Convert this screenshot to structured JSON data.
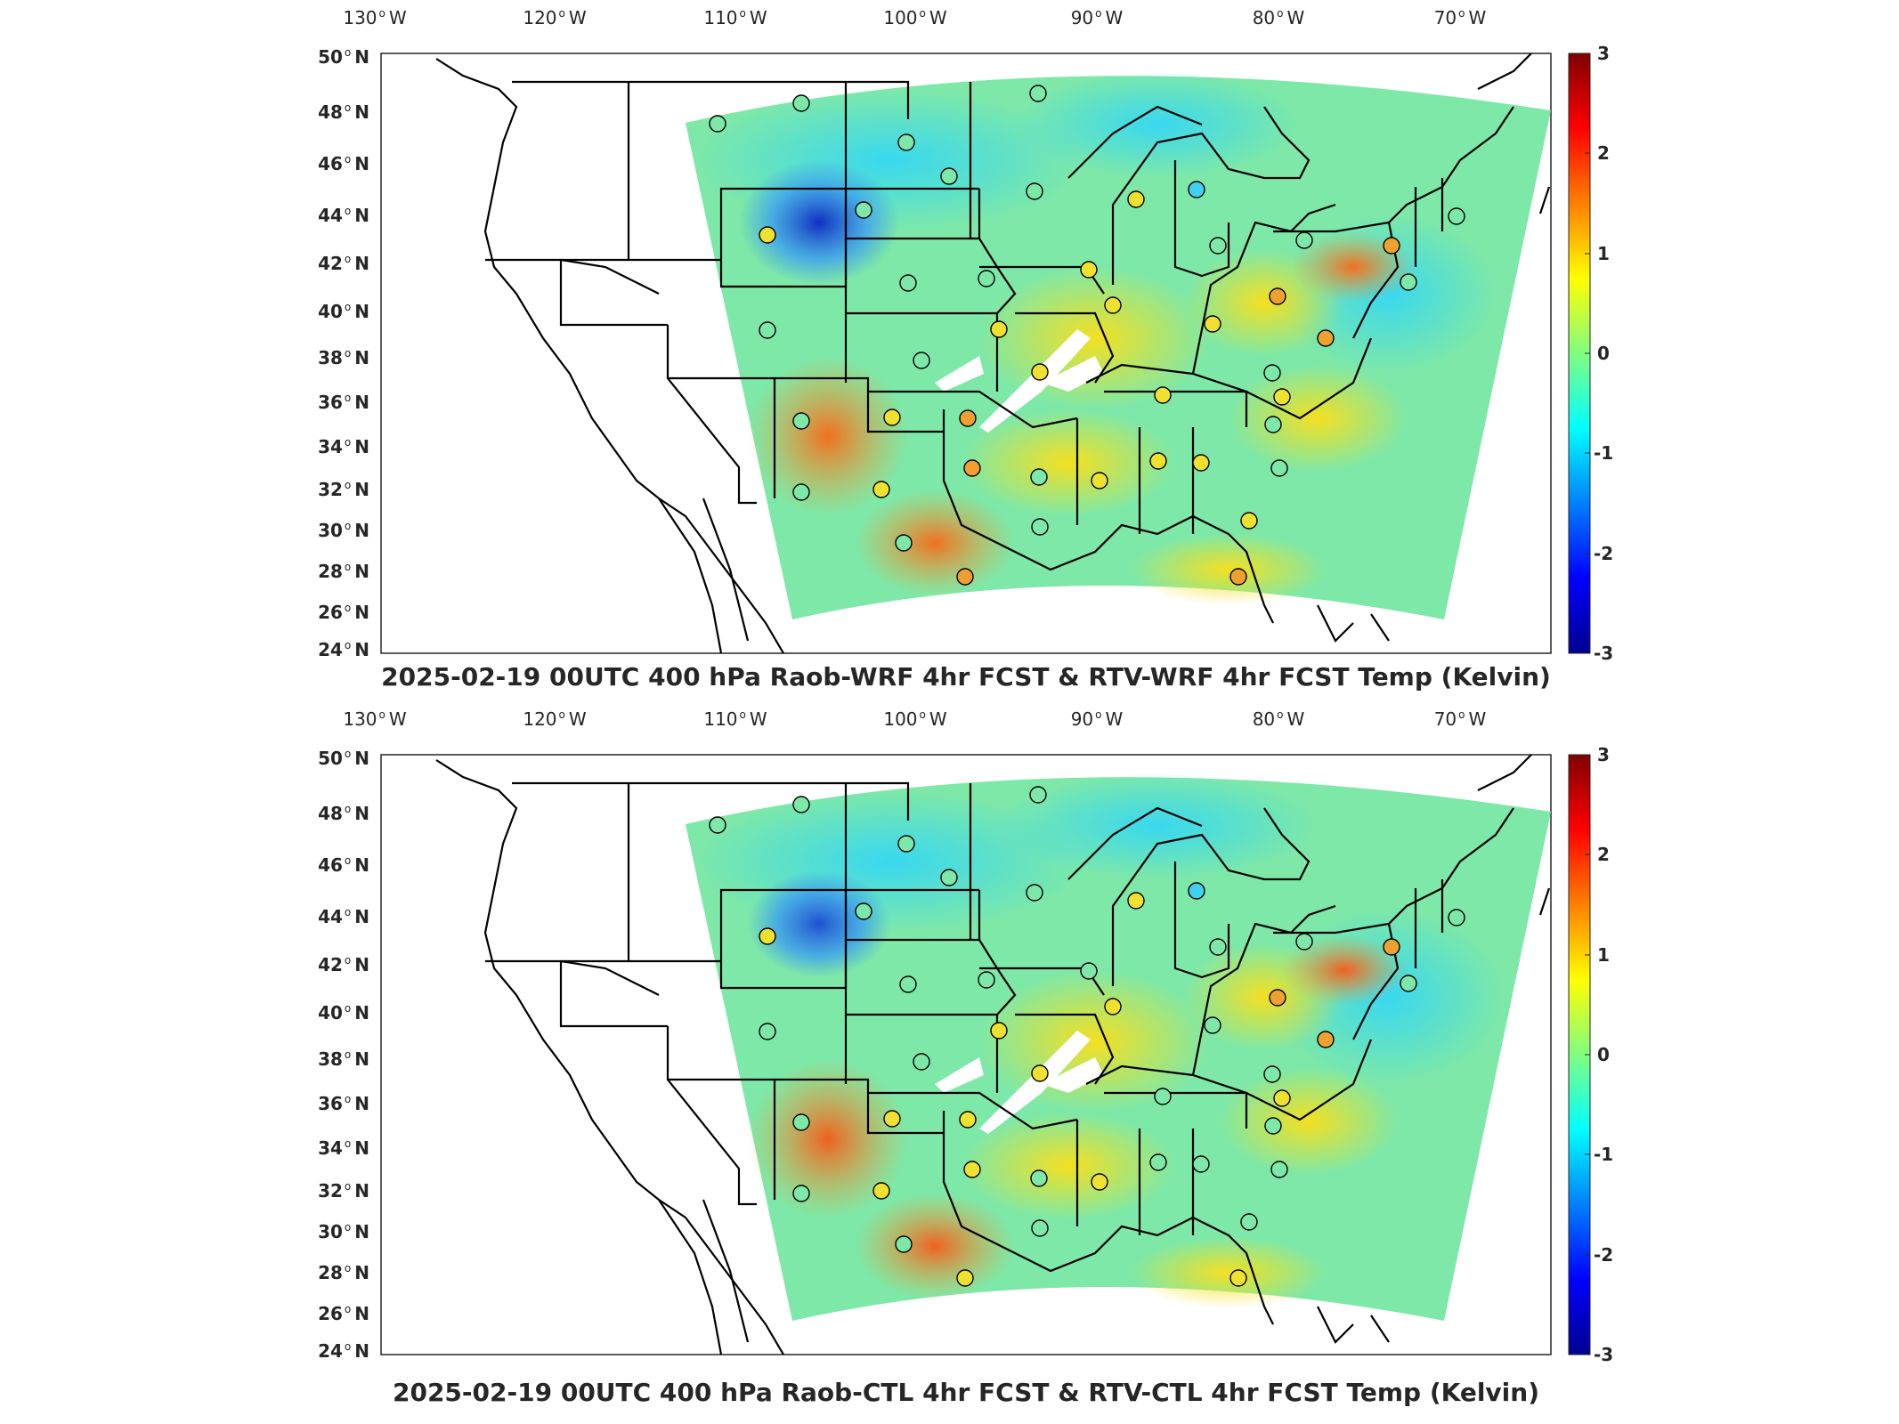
{
  "panels": [
    {
      "id": "top",
      "title": "2025-02-19 00UTC 400 hPa Raob-WRF 4hr FCST & RTV-WRF 4hr FCST Temp (Kelvin)",
      "lon_labels": [
        "130",
        "120",
        "110",
        "100",
        "90",
        "80",
        "70"
      ],
      "lat_labels": [
        "50",
        "48",
        "46",
        "44",
        "42",
        "40",
        "38",
        "36",
        "34",
        "32",
        "30",
        "28",
        "26",
        "24"
      ],
      "colorbar_ticks": [
        "3",
        "2",
        "1",
        "0",
        "-1",
        "-2",
        "-3"
      ]
    },
    {
      "id": "bottom",
      "title": "2025-02-19 00UTC 400 hPa Raob-CTL 4hr FCST & RTV-CTL 4hr FCST Temp (Kelvin)",
      "lon_labels": [
        "130",
        "120",
        "110",
        "100",
        "90",
        "80",
        "70"
      ],
      "lat_labels": [
        "50",
        "48",
        "46",
        "44",
        "42",
        "40",
        "38",
        "36",
        "34",
        "32",
        "30",
        "28",
        "26",
        "24"
      ],
      "colorbar_ticks": [
        "3",
        "2",
        "1",
        "0",
        "-1",
        "-2",
        "-3"
      ]
    }
  ],
  "lon_suffix": "W",
  "lat_suffix": "N",
  "colormap": [
    "#00008f",
    "#0000ff",
    "#0080ff",
    "#00ffff",
    "#80ff80",
    "#ffff00",
    "#ff8000",
    "#ff0000",
    "#800000"
  ],
  "colorbar_range": [
    -3,
    3
  ]
}
